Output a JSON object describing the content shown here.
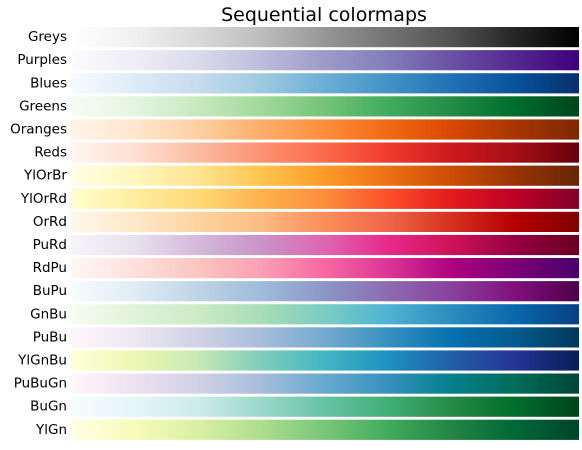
{
  "chart_data": {
    "type": "heatmap",
    "title": "Sequential colormaps",
    "xlabel": "",
    "ylabel": "",
    "gradient_domain": [
      0,
      1
    ],
    "colormaps": [
      {
        "name": "Greys",
        "stops": [
          "#ffffff",
          "#f0f0f0",
          "#d9d9d9",
          "#bdbdbd",
          "#969696",
          "#737373",
          "#525252",
          "#252525",
          "#000000"
        ]
      },
      {
        "name": "Purples",
        "stops": [
          "#fcfbfd",
          "#efedf5",
          "#dadaeb",
          "#bcbddc",
          "#9e9ac8",
          "#807dba",
          "#6a51a3",
          "#54278f",
          "#3f007d"
        ]
      },
      {
        "name": "Blues",
        "stops": [
          "#f7fbff",
          "#deebf7",
          "#c6dbef",
          "#9ecae1",
          "#6baed6",
          "#4292c6",
          "#2171b5",
          "#08519c",
          "#08306b"
        ]
      },
      {
        "name": "Greens",
        "stops": [
          "#f7fcf5",
          "#e5f5e0",
          "#c7e9c0",
          "#a1d99b",
          "#74c476",
          "#41ab5d",
          "#238b45",
          "#006d2c",
          "#00441b"
        ]
      },
      {
        "name": "Oranges",
        "stops": [
          "#fff5eb",
          "#fee6ce",
          "#fdd0a2",
          "#fdae6b",
          "#fd8d3c",
          "#f16913",
          "#d94801",
          "#a63603",
          "#7f2704"
        ]
      },
      {
        "name": "Reds",
        "stops": [
          "#fff5f0",
          "#fee0d2",
          "#fcbba1",
          "#fc9272",
          "#fb6a4a",
          "#ef3b2c",
          "#cb181d",
          "#a50f15",
          "#67000d"
        ]
      },
      {
        "name": "YlOrBr",
        "stops": [
          "#ffffe5",
          "#fff7bc",
          "#fee391",
          "#fec44f",
          "#fe9929",
          "#ec7014",
          "#cc4c02",
          "#993404",
          "#662506"
        ]
      },
      {
        "name": "YlOrRd",
        "stops": [
          "#ffffcc",
          "#ffeda0",
          "#fed976",
          "#feb24c",
          "#fd8d3c",
          "#fc4e2a",
          "#e31a1c",
          "#bd0026",
          "#800026"
        ]
      },
      {
        "name": "OrRd",
        "stops": [
          "#fff7ec",
          "#fee8c8",
          "#fdd49e",
          "#fdbb84",
          "#fc8d59",
          "#ef6548",
          "#d7301f",
          "#b30000",
          "#7f0000"
        ]
      },
      {
        "name": "PuRd",
        "stops": [
          "#f7f4f9",
          "#e7e1ef",
          "#d4b9da",
          "#c994c7",
          "#df65b0",
          "#e7298a",
          "#ce1256",
          "#980043",
          "#67001f"
        ]
      },
      {
        "name": "RdPu",
        "stops": [
          "#fff7f3",
          "#fde0dd",
          "#fcc5c0",
          "#fa9fb5",
          "#f768a1",
          "#dd3497",
          "#ae017e",
          "#7a0177",
          "#49006a"
        ]
      },
      {
        "name": "BuPu",
        "stops": [
          "#f7fcfd",
          "#e0ecf4",
          "#bfd3e6",
          "#9ebcda",
          "#8c96c6",
          "#8c6bb1",
          "#88419d",
          "#810f7c",
          "#4d004b"
        ]
      },
      {
        "name": "GnBu",
        "stops": [
          "#f7fcf0",
          "#e0f3db",
          "#ccebc5",
          "#a8ddb5",
          "#7bccc4",
          "#4eb3d3",
          "#2b8cbe",
          "#0868ac",
          "#084081"
        ]
      },
      {
        "name": "PuBu",
        "stops": [
          "#fff7fb",
          "#ece7f2",
          "#d0d1e6",
          "#a6bddb",
          "#74a9cf",
          "#3690c0",
          "#0570b0",
          "#045a8d",
          "#023858"
        ]
      },
      {
        "name": "YlGnBu",
        "stops": [
          "#ffffd9",
          "#edf8b1",
          "#c7e9b4",
          "#7fcdbb",
          "#41b6c4",
          "#1d91c0",
          "#225ea8",
          "#253494",
          "#081d58"
        ]
      },
      {
        "name": "PuBuGn",
        "stops": [
          "#fff7fb",
          "#ece2f0",
          "#d0d1e6",
          "#a6bddb",
          "#67a9cf",
          "#3690c0",
          "#02818a",
          "#016c59",
          "#014636"
        ]
      },
      {
        "name": "BuGn",
        "stops": [
          "#f7fcfd",
          "#e5f5f9",
          "#ccece6",
          "#99d8c9",
          "#66c2a4",
          "#41ae76",
          "#238b45",
          "#006d2c",
          "#00441b"
        ]
      },
      {
        "name": "YlGn",
        "stops": [
          "#ffffe5",
          "#f7fcb9",
          "#d9f0a3",
          "#addd8e",
          "#78c679",
          "#41ab5d",
          "#238443",
          "#006837",
          "#004529"
        ]
      }
    ]
  }
}
